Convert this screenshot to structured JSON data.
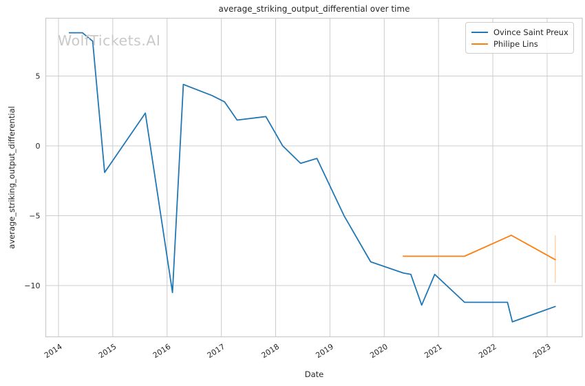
{
  "chart_data": {
    "type": "line",
    "title": "average_striking_output_differential over time",
    "xlabel": "Date",
    "ylabel": "average_striking_output_differential",
    "watermark": "WolfTickets.AI",
    "grid": true,
    "legend_position": "top-right",
    "xlim": [
      2013.766,
      2023.647
    ],
    "ylim": [
      -13.67,
      9.14
    ],
    "xticks": [
      {
        "value": 2014,
        "label": "2014"
      },
      {
        "value": 2015,
        "label": "2015"
      },
      {
        "value": 2016,
        "label": "2016"
      },
      {
        "value": 2017,
        "label": "2017"
      },
      {
        "value": 2018,
        "label": "2018"
      },
      {
        "value": 2019,
        "label": "2019"
      },
      {
        "value": 2020,
        "label": "2020"
      },
      {
        "value": 2021,
        "label": "2021"
      },
      {
        "value": 2022,
        "label": "2022"
      },
      {
        "value": 2023,
        "label": "2023"
      }
    ],
    "yticks": [
      {
        "value": 5,
        "label": "5"
      },
      {
        "value": 0,
        "label": "0"
      },
      {
        "value": -5,
        "label": "−5"
      },
      {
        "value": -10,
        "label": "−10"
      }
    ],
    "series": [
      {
        "name": "Ovince Saint Preux",
        "color": "#1f77b4",
        "points": [
          [
            2014.2,
            8.1
          ],
          [
            2014.44,
            8.1
          ],
          [
            2014.63,
            7.5
          ],
          [
            2014.85,
            -1.9
          ],
          [
            2015.6,
            2.35
          ],
          [
            2016.1,
            -10.5
          ],
          [
            2016.3,
            4.4
          ],
          [
            2016.83,
            3.6
          ],
          [
            2017.06,
            3.15
          ],
          [
            2017.29,
            1.85
          ],
          [
            2017.82,
            2.1
          ],
          [
            2018.13,
            0.0
          ],
          [
            2018.46,
            -1.25
          ],
          [
            2018.76,
            -0.9
          ],
          [
            2019.26,
            -5.0
          ],
          [
            2019.75,
            -8.3
          ],
          [
            2020.35,
            -9.1
          ],
          [
            2020.49,
            -9.2
          ],
          [
            2020.69,
            -11.4
          ],
          [
            2020.93,
            -9.2
          ],
          [
            2021.48,
            -11.2
          ],
          [
            2022.27,
            -11.2
          ],
          [
            2022.36,
            -12.6
          ],
          [
            2023.15,
            -11.5
          ]
        ]
      },
      {
        "name": "Philipe Lins",
        "color": "#ff7f0e",
        "points": [
          [
            2020.35,
            -7.9
          ],
          [
            2021.48,
            -7.9
          ],
          [
            2022.34,
            -6.4
          ],
          [
            2023.15,
            -8.15
          ]
        ]
      }
    ],
    "error_bars": [
      {
        "series": "Philipe Lins",
        "x": 2023.15,
        "y_low": -9.8,
        "y_high": -6.4,
        "color": "#ff7f0e",
        "opacity": 0.4
      }
    ]
  },
  "style_colors": {
    "grid": "#cccccc",
    "spine": "#cccccc",
    "text": "#262626"
  }
}
